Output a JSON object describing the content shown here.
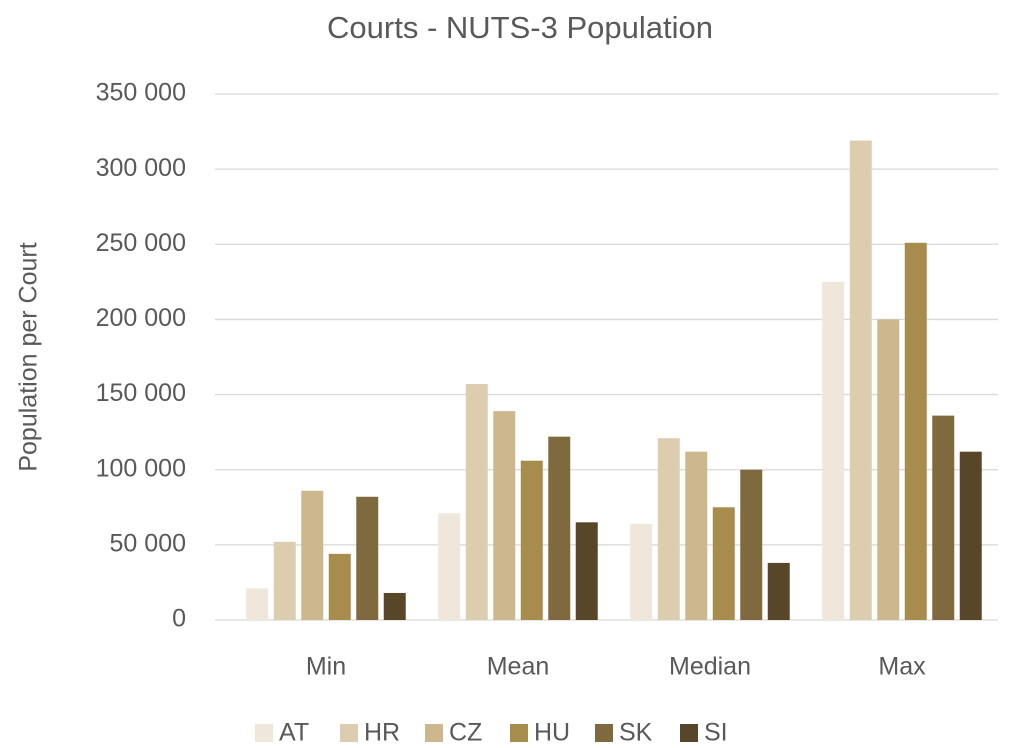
{
  "chart_data": {
    "type": "bar",
    "title": "Courts - NUTS-3 Population",
    "y_label": "Population per Court",
    "categories": [
      "Min",
      "Mean",
      "Median",
      "Max"
    ],
    "series": [
      {
        "name": "AT",
        "color": "#efe7da",
        "values": [
          21000,
          71000,
          64000,
          225000
        ]
      },
      {
        "name": "HR",
        "color": "#ddcdb0",
        "values": [
          52000,
          157000,
          121000,
          319000
        ]
      },
      {
        "name": "CZ",
        "color": "#cdb88d",
        "values": [
          86000,
          139000,
          112000,
          200000
        ]
      },
      {
        "name": "HU",
        "color": "#a88c4e",
        "values": [
          44000,
          106000,
          75000,
          251000
        ]
      },
      {
        "name": "SK",
        "color": "#7f6a40",
        "values": [
          82000,
          122000,
          100000,
          136000
        ]
      },
      {
        "name": "SI",
        "color": "#574628",
        "values": [
          18000,
          65000,
          38000,
          112000
        ]
      }
    ],
    "ylim": [
      0,
      350000
    ],
    "yticks": [
      0,
      {
        "value": 50000,
        "label": "50 000"
      },
      {
        "value": 100000,
        "label": "100 000"
      },
      {
        "value": 150000,
        "label": "150 000"
      },
      {
        "value": 200000,
        "label": "200 000"
      },
      {
        "value": 250000,
        "label": "250 000"
      },
      {
        "value": 300000,
        "label": "300 000"
      },
      {
        "value": 350000,
        "label": "350 000"
      }
    ],
    "grid": true,
    "legend": "bottom"
  }
}
